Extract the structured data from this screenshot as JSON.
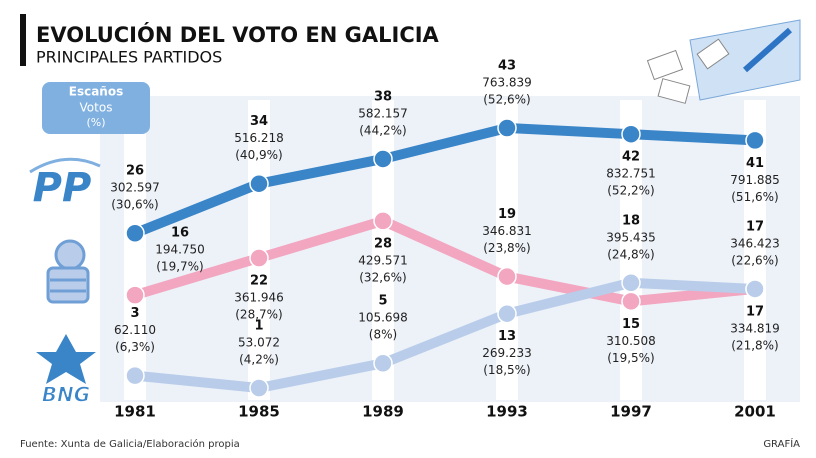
{
  "chart_data": {
    "type": "line",
    "title": "EVOLUCIÓN DEL VOTO EN GALICIA",
    "subtitle": "PRINCIPALES PARTIDOS",
    "legend_lines": [
      "Escaños",
      "Votos",
      "(%)"
    ],
    "source": "Fuente: Xunta de Galicia/Elaboración propia",
    "credit": "GRAFÍA",
    "categories": [
      "1981",
      "1985",
      "1989",
      "1993",
      "1997",
      "2001"
    ],
    "series": [
      {
        "name": "PP",
        "color": "#3a85c8",
        "values": [
          26,
          34,
          38,
          43,
          42,
          41
        ],
        "votes": [
          302597,
          516218,
          582157,
          763839,
          832751,
          791885
        ],
        "votes_labels": [
          "302.597",
          "516.218",
          "582.157",
          "763.839",
          "832.751",
          "791.885"
        ],
        "percent": [
          30.6,
          40.9,
          44.2,
          52.6,
          52.2,
          51.6
        ],
        "percent_labels": [
          "(30,6%)",
          "(40,9%)",
          "(44,2%)",
          "(52,6%)",
          "(52,2%)",
          "(51,6%)"
        ]
      },
      {
        "color": "#f2a6c0",
        "values": [
          16,
          22,
          28,
          19,
          15,
          17
        ],
        "votes": [
          194750,
          361946,
          429571,
          346831,
          310508,
          334819
        ],
        "votes_labels": [
          "194.750",
          "361.946",
          "429.571",
          "346.831",
          "310.508",
          "334.819"
        ],
        "percent": [
          19.7,
          28.7,
          32.6,
          23.8,
          19.5,
          21.8
        ],
        "percent_labels": [
          "(19,7%)",
          "(28,7%)",
          "(32,6%)",
          "(23,8%)",
          "(19,5%)",
          "(21,8%)"
        ]
      },
      {
        "name": "BNG",
        "color": "#b9cdea",
        "values": [
          3,
          1,
          5,
          13,
          18,
          17
        ],
        "votes": [
          62110,
          53072,
          105698,
          269233,
          395435,
          346423
        ],
        "votes_labels": [
          "62.110",
          "53.072",
          "105.698",
          "269.233",
          "395.435",
          "346.423"
        ],
        "percent": [
          6.3,
          4.2,
          8,
          18.5,
          24.8,
          22.6
        ],
        "percent_labels": [
          "(6,3%)",
          "(4,2%)",
          "(8%)",
          "(18,5%)",
          "(24,8%)",
          "(22,6%)"
        ]
      }
    ]
  }
}
